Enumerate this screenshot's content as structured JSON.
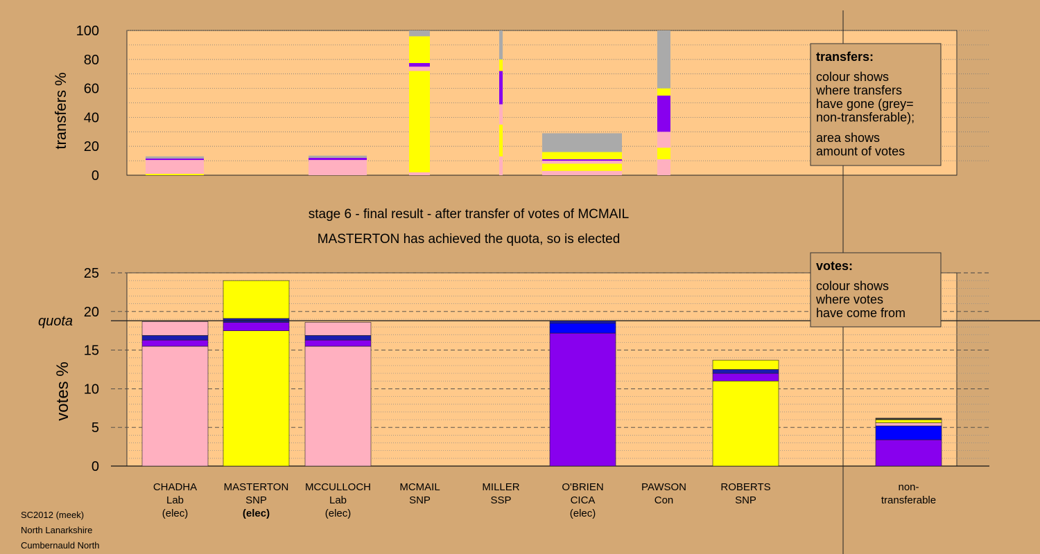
{
  "header": {
    "stage_line": "stage 6 - final result - after transfer of votes of MCMAIL",
    "result_line": "MASTERTON has achieved the quota, so is elected"
  },
  "footer": {
    "line1": "SC2012 (meek)",
    "line2": "North Lanarkshire",
    "line3": "Cumbernauld North"
  },
  "legend_transfers": {
    "title": "transfers:",
    "body": [
      "colour shows",
      "where transfers",
      "have gone (grey=",
      "non-transferable);"
    ],
    "body2": [
      "area shows",
      "amount of votes"
    ]
  },
  "legend_votes": {
    "title": "votes:",
    "body": [
      "colour shows",
      "where votes",
      "have come from"
    ]
  },
  "colors": {
    "background": "#d4a874",
    "plot_bg": "#ffc98a",
    "Lab": "#ffb0c0",
    "SNP": "#ffff00",
    "CICA": "#8800ee",
    "SSP": "#0000ff",
    "Con": "#1b1bb0",
    "grey": "#aaaaaa",
    "dark": "#333333"
  },
  "candidates": [
    {
      "name": "CHADHA",
      "party": "Lab",
      "status": "(elec)"
    },
    {
      "name": "MASTERTON",
      "party": "SNP",
      "status": "(elec)"
    },
    {
      "name": "MCCULLOCH",
      "party": "Lab",
      "status": "(elec)"
    },
    {
      "name": "MCMAIL",
      "party": "SNP",
      "status": ""
    },
    {
      "name": "MILLER",
      "party": "SSP",
      "status": ""
    },
    {
      "name": "O'BRIEN",
      "party": "CICA",
      "status": "(elec)"
    },
    {
      "name": "PAWSON",
      "party": "Con",
      "status": ""
    },
    {
      "name": "ROBERTS",
      "party": "SNP",
      "status": ""
    },
    {
      "name": "non-",
      "party": "transferable",
      "status": ""
    }
  ],
  "chart_data": [
    {
      "type": "bar",
      "ylabel": "transfers %",
      "ylim": [
        0,
        100
      ],
      "yticks": [
        0,
        20,
        40,
        60,
        80,
        100
      ],
      "grid": "dotted every 10",
      "legend": "top-right",
      "columns": [
        {
          "index": 0,
          "segments": [
            {
              "c": "SNP",
              "from": 0,
              "to": 1
            },
            {
              "c": "Lab",
              "from": 1,
              "to": 10.5
            },
            {
              "c": "CICA",
              "from": 10.5,
              "to": 11.5
            },
            {
              "c": "grey",
              "from": 11.5,
              "to": 13
            }
          ]
        },
        {
          "index": 2,
          "segments": [
            {
              "c": "Lab",
              "from": 0,
              "to": 10.5
            },
            {
              "c": "CICA",
              "from": 10.5,
              "to": 12
            },
            {
              "c": "grey",
              "from": 12,
              "to": 13.5
            }
          ]
        },
        {
          "index": 3,
          "segments": [
            {
              "c": "Lab",
              "from": 0,
              "to": 2
            },
            {
              "c": "SNP",
              "from": 2,
              "to": 72
            },
            {
              "c": "Lab",
              "from": 72,
              "to": 75
            },
            {
              "c": "CICA",
              "from": 75,
              "to": 77.5
            },
            {
              "c": "SNP",
              "from": 77.5,
              "to": 96
            },
            {
              "c": "grey",
              "from": 96,
              "to": 100
            }
          ]
        },
        {
          "index": 4,
          "segments": [
            {
              "c": "Lab",
              "from": 0,
              "to": 13
            },
            {
              "c": "SNP",
              "from": 13,
              "to": 35
            },
            {
              "c": "Lab",
              "from": 35,
              "to": 49
            },
            {
              "c": "CICA",
              "from": 49,
              "to": 72
            },
            {
              "c": "SNP",
              "from": 72,
              "to": 80
            },
            {
              "c": "grey",
              "from": 80,
              "to": 100
            }
          ]
        },
        {
          "index": 5,
          "segments": [
            {
              "c": "Lab",
              "from": 0,
              "to": 3
            },
            {
              "c": "SNP",
              "from": 3,
              "to": 8
            },
            {
              "c": "Lab",
              "from": 8,
              "to": 10
            },
            {
              "c": "CICA",
              "from": 10,
              "to": 11
            },
            {
              "c": "SNP",
              "from": 11,
              "to": 16
            },
            {
              "c": "grey",
              "from": 16,
              "to": 29
            }
          ]
        },
        {
          "index": 6,
          "segments": [
            {
              "c": "Lab",
              "from": 0,
              "to": 11
            },
            {
              "c": "SNP",
              "from": 11,
              "to": 19
            },
            {
              "c": "Lab",
              "from": 19,
              "to": 30
            },
            {
              "c": "CICA",
              "from": 30,
              "to": 55
            },
            {
              "c": "SNP",
              "from": 55,
              "to": 60
            },
            {
              "c": "grey",
              "from": 60,
              "to": 100
            }
          ]
        }
      ]
    },
    {
      "type": "bar",
      "ylabel": "votes %",
      "ylim": [
        0,
        25
      ],
      "yticks": [
        0,
        5,
        10,
        15,
        20,
        25
      ],
      "quota_label": "quota",
      "quota": 18.8,
      "grid": "dashed every 5, dotted every 1",
      "legend": "top-right",
      "columns": [
        {
          "index": 0,
          "segments": [
            {
              "c": "Lab",
              "from": 0,
              "to": 15.5
            },
            {
              "c": "CICA",
              "from": 15.5,
              "to": 16.3
            },
            {
              "c": "Con",
              "from": 16.3,
              "to": 16.9
            },
            {
              "c": "Lab",
              "from": 16.9,
              "to": 18.7
            }
          ]
        },
        {
          "index": 1,
          "segments": [
            {
              "c": "SNP",
              "from": 0,
              "to": 17.5
            },
            {
              "c": "CICA",
              "from": 17.5,
              "to": 18.6
            },
            {
              "c": "Con",
              "from": 18.6,
              "to": 19.1
            },
            {
              "c": "SNP",
              "from": 19.1,
              "to": 24.0
            }
          ]
        },
        {
          "index": 2,
          "segments": [
            {
              "c": "Lab",
              "from": 0,
              "to": 15.5
            },
            {
              "c": "CICA",
              "from": 15.5,
              "to": 16.3
            },
            {
              "c": "Con",
              "from": 16.3,
              "to": 16.9
            },
            {
              "c": "Lab",
              "from": 16.9,
              "to": 18.6
            }
          ]
        },
        {
          "index": 5,
          "segments": [
            {
              "c": "CICA",
              "from": 0,
              "to": 17.2
            },
            {
              "c": "SSP",
              "from": 17.2,
              "to": 18.5
            },
            {
              "c": "Con",
              "from": 18.5,
              "to": 18.8
            }
          ]
        },
        {
          "index": 7,
          "segments": [
            {
              "c": "SNP",
              "from": 0,
              "to": 11.0
            },
            {
              "c": "CICA",
              "from": 11.0,
              "to": 12.0
            },
            {
              "c": "Con",
              "from": 12.0,
              "to": 12.5
            },
            {
              "c": "SNP",
              "from": 12.5,
              "to": 13.7
            }
          ]
        },
        {
          "index": 8,
          "segments": [
            {
              "c": "CICA",
              "from": 0,
              "to": 3.4
            },
            {
              "c": "SSP",
              "from": 3.4,
              "to": 5.2
            },
            {
              "c": "Lab",
              "from": 5.2,
              "to": 5.6
            },
            {
              "c": "SNP",
              "from": 5.6,
              "to": 6.0
            },
            {
              "c": "dark",
              "from": 6.0,
              "to": 6.2
            }
          ]
        }
      ]
    }
  ]
}
